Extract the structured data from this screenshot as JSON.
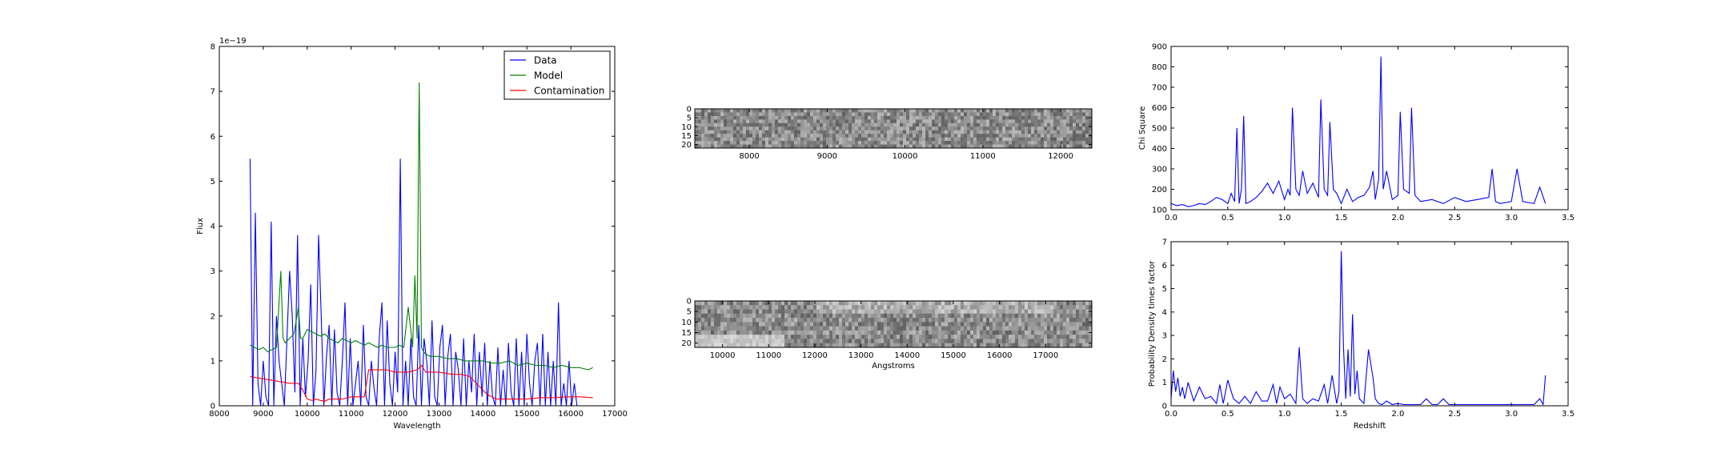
{
  "chart_data": [
    {
      "type": "line",
      "xlabel": "Wavelength",
      "ylabel": "Flux",
      "offset_label": "1e−19",
      "xlim": [
        8000,
        17000
      ],
      "ylim": [
        0,
        8
      ],
      "xticks": [
        "8000",
        "9000",
        "10000",
        "11000",
        "12000",
        "13000",
        "14000",
        "15000",
        "16000",
        "17000"
      ],
      "yticks": [
        "0",
        "1",
        "2",
        "3",
        "4",
        "5",
        "6",
        "7",
        "8"
      ],
      "legend_position": "upper right",
      "colors": {
        "Data": "#0000ff",
        "Model": "#008000",
        "Contamination": "#ff0000"
      },
      "series": [
        {
          "name": "Data",
          "x": [
            8700,
            8760,
            8820,
            8880,
            8940,
            9000,
            9060,
            9120,
            9180,
            9240,
            9300,
            9360,
            9420,
            9480,
            9540,
            9600,
            9660,
            9720,
            9780,
            9840,
            9900,
            9960,
            10020,
            10080,
            10140,
            10200,
            10260,
            10320,
            10380,
            10440,
            10500,
            10560,
            10620,
            10680,
            10740,
            10800,
            10860,
            10920,
            10980,
            11040,
            11100,
            11160,
            11220,
            11280,
            11340,
            11400,
            11460,
            11520,
            11580,
            11640,
            11700,
            11760,
            11820,
            11880,
            11940,
            12000,
            12060,
            12120,
            12180,
            12240,
            12300,
            12360,
            12420,
            12480,
            12540,
            12600,
            12660,
            12720,
            12780,
            12840,
            12900,
            12960,
            13020,
            13080,
            13140,
            13200,
            13260,
            13320,
            13380,
            13440,
            13500,
            13560,
            13620,
            13680,
            13740,
            13800,
            13860,
            13920,
            13980,
            14040,
            14100,
            14160,
            14220,
            14280,
            14340,
            14400,
            14460,
            14520,
            14580,
            14640,
            14700,
            14760,
            14820,
            14880,
            14940,
            15000,
            15060,
            15120,
            15180,
            15240,
            15300,
            15360,
            15420,
            15480,
            15540,
            15600,
            15660,
            15720,
            15780,
            15840,
            15900,
            15960,
            16020,
            16080,
            16140,
            16200,
            16260,
            16320,
            16380,
            16440
          ],
          "values": [
            5.5,
            0.0,
            4.3,
            0.5,
            0.0,
            1.0,
            0.2,
            0.0,
            4.1,
            0.0,
            2.0,
            1.0,
            0.5,
            0.0,
            1.5,
            3.0,
            2.0,
            0.3,
            3.8,
            0.0,
            1.5,
            0.2,
            1.0,
            2.7,
            0.0,
            0.8,
            3.8,
            2.0,
            0.0,
            1.1,
            1.8,
            0.0,
            1.7,
            0.3,
            0.0,
            1.0,
            2.3,
            0.0,
            1.5,
            0.0,
            0.5,
            1.0,
            0.0,
            1.8,
            0.2,
            0.0,
            1.0,
            0.4,
            0.0,
            1.5,
            2.3,
            0.0,
            1.9,
            0.5,
            0.0,
            1.2,
            0.3,
            5.5,
            0.0,
            1.0,
            0.0,
            1.5,
            0.2,
            0.0,
            1.8,
            0.0,
            1.5,
            1.0,
            0.0,
            1.9,
            0.2,
            0.0,
            1.3,
            1.8,
            0.0,
            1.1,
            1.6,
            0.0,
            1.2,
            0.8,
            0.0,
            1.5,
            0.0,
            1.0,
            0.3,
            1.6,
            0.0,
            1.2,
            0.2,
            1.4,
            0.0,
            1.0,
            0.2,
            0.0,
            1.3,
            0.0,
            0.8,
            0.0,
            1.4,
            0.3,
            0.0,
            1.5,
            0.0,
            1.2,
            0.0,
            1.6,
            0.5,
            0.0,
            1.0,
            1.4,
            0.0,
            1.6,
            0.0,
            1.2,
            0.0,
            1.0,
            0.0,
            2.3,
            0.0,
            0.5,
            0.0,
            1.0,
            0.0,
            0.5,
            0.0,
            0.0,
            0.0,
            0.0,
            0.0,
            0.0
          ]
        },
        {
          "name": "Model",
          "x": [
            8700,
            8800,
            8900,
            9000,
            9100,
            9200,
            9300,
            9400,
            9450,
            9500,
            9600,
            9700,
            9800,
            9850,
            9900,
            10000,
            10100,
            10200,
            10300,
            10400,
            10500,
            10600,
            10700,
            10800,
            10900,
            11000,
            11100,
            11200,
            11300,
            11400,
            11500,
            11600,
            11700,
            11800,
            11900,
            12000,
            12100,
            12200,
            12300,
            12400,
            12450,
            12500,
            12550,
            12600,
            12650,
            12700,
            12800,
            12900,
            13000,
            13200,
            13400,
            13600,
            13800,
            14000,
            14200,
            14400,
            14600,
            14800,
            15000,
            15200,
            15400,
            15600,
            15800,
            16000,
            16200,
            16400,
            16500
          ],
          "values": [
            1.35,
            1.3,
            1.25,
            1.3,
            1.2,
            1.25,
            1.3,
            3.0,
            1.5,
            1.4,
            1.5,
            1.6,
            2.2,
            1.5,
            1.5,
            1.7,
            1.65,
            1.6,
            1.55,
            1.6,
            1.5,
            1.45,
            1.4,
            1.5,
            1.45,
            1.4,
            1.45,
            1.4,
            1.35,
            1.4,
            1.35,
            1.3,
            1.35,
            1.3,
            1.3,
            1.3,
            1.35,
            1.3,
            2.2,
            1.3,
            2.9,
            1.5,
            7.2,
            1.3,
            1.2,
            1.15,
            1.1,
            1.1,
            1.1,
            1.05,
            1.05,
            1.0,
            1.0,
            1.0,
            0.95,
            0.95,
            1.0,
            0.9,
            0.95,
            0.9,
            0.9,
            0.85,
            0.9,
            0.85,
            0.85,
            0.8,
            0.85
          ]
        },
        {
          "name": "Contamination",
          "x": [
            8700,
            9000,
            9300,
            9600,
            9800,
            9900,
            10000,
            10100,
            10200,
            10300,
            10400,
            10500,
            10800,
            11000,
            11300,
            11400,
            11500,
            11800,
            12000,
            12300,
            12500,
            12600,
            12700,
            13000,
            13300,
            13500,
            13700,
            13800,
            13900,
            14000,
            14100,
            14200,
            14300,
            14500,
            14800,
            15000,
            15300,
            15600,
            15900,
            16200,
            16500
          ],
          "values": [
            0.65,
            0.6,
            0.55,
            0.5,
            0.5,
            0.35,
            0.15,
            0.12,
            0.15,
            0.12,
            0.1,
            0.15,
            0.15,
            0.2,
            0.2,
            0.8,
            0.8,
            0.8,
            0.75,
            0.75,
            0.8,
            0.9,
            0.75,
            0.75,
            0.7,
            0.7,
            0.65,
            0.55,
            0.45,
            0.35,
            0.25,
            0.2,
            0.15,
            0.15,
            0.15,
            0.15,
            0.18,
            0.18,
            0.2,
            0.2,
            0.18
          ]
        }
      ]
    },
    {
      "type": "heatmap",
      "xticks": [
        "8000",
        "9000",
        "10000",
        "11000",
        "12000"
      ],
      "xtick_values": [
        8000,
        9000,
        10000,
        11000,
        12000
      ],
      "xlim": [
        7300,
        12400
      ],
      "yticks": [
        "0",
        "5",
        "10",
        "15",
        "20"
      ],
      "ylim": [
        0,
        22
      ],
      "colormap": "gray"
    },
    {
      "type": "line",
      "xlabel": "",
      "ylabel": "Chi Square",
      "xlim": [
        0.0,
        3.5
      ],
      "ylim": [
        100,
        900
      ],
      "xticks": [
        "0.0",
        "0.5",
        "1.0",
        "1.5",
        "2.0",
        "2.5",
        "3.0",
        "3.5"
      ],
      "yticks": [
        "100",
        "200",
        "300",
        "400",
        "500",
        "600",
        "700",
        "800",
        "900"
      ],
      "series": [
        {
          "x": [
            0.0,
            0.05,
            0.1,
            0.15,
            0.2,
            0.25,
            0.3,
            0.35,
            0.4,
            0.45,
            0.5,
            0.53,
            0.56,
            0.58,
            0.6,
            0.62,
            0.64,
            0.66,
            0.7,
            0.75,
            0.8,
            0.85,
            0.9,
            0.95,
            1.0,
            1.03,
            1.05,
            1.07,
            1.1,
            1.13,
            1.16,
            1.2,
            1.25,
            1.3,
            1.32,
            1.35,
            1.38,
            1.4,
            1.43,
            1.46,
            1.5,
            1.55,
            1.6,
            1.65,
            1.7,
            1.75,
            1.78,
            1.8,
            1.83,
            1.85,
            1.87,
            1.9,
            1.95,
            2.0,
            2.02,
            2.05,
            2.1,
            2.12,
            2.15,
            2.2,
            2.3,
            2.4,
            2.5,
            2.6,
            2.7,
            2.8,
            2.83,
            2.86,
            2.9,
            3.0,
            3.05,
            3.1,
            3.2,
            3.25,
            3.3
          ],
          "values": [
            130,
            120,
            125,
            115,
            120,
            130,
            125,
            140,
            160,
            150,
            130,
            180,
            140,
            500,
            130,
            200,
            560,
            130,
            140,
            160,
            190,
            230,
            180,
            240,
            150,
            200,
            170,
            600,
            200,
            170,
            290,
            180,
            230,
            160,
            640,
            200,
            170,
            530,
            200,
            180,
            130,
            200,
            140,
            160,
            170,
            210,
            290,
            150,
            250,
            850,
            200,
            290,
            150,
            170,
            580,
            200,
            180,
            600,
            170,
            140,
            150,
            130,
            160,
            140,
            150,
            160,
            300,
            140,
            130,
            140,
            300,
            140,
            130,
            210,
            130
          ]
        }
      ]
    },
    {
      "type": "heatmap",
      "xlabel": "Angstroms",
      "xticks": [
        "10000",
        "11000",
        "12000",
        "13000",
        "14000",
        "15000",
        "16000",
        "17000"
      ],
      "xtick_values": [
        10000,
        11000,
        12000,
        13000,
        14000,
        15000,
        16000,
        17000
      ],
      "xlim": [
        9400,
        18000
      ],
      "yticks": [
        "0",
        "5",
        "10",
        "15",
        "20"
      ],
      "ylim": [
        0,
        22
      ],
      "colormap": "gray"
    },
    {
      "type": "line",
      "xlabel": "Redshift",
      "ylabel": "Probability Density times factor",
      "xlim": [
        0.0,
        3.5
      ],
      "ylim": [
        0,
        7
      ],
      "xticks": [
        "0.0",
        "0.5",
        "1.0",
        "1.5",
        "2.0",
        "2.5",
        "3.0",
        "3.5"
      ],
      "yticks": [
        "0",
        "1",
        "2",
        "3",
        "4",
        "5",
        "6",
        "7"
      ],
      "series": [
        {
          "x": [
            0.0,
            0.02,
            0.04,
            0.06,
            0.08,
            0.1,
            0.12,
            0.15,
            0.2,
            0.25,
            0.3,
            0.35,
            0.4,
            0.43,
            0.46,
            0.5,
            0.55,
            0.6,
            0.65,
            0.7,
            0.75,
            0.8,
            0.85,
            0.9,
            0.93,
            0.96,
            1.0,
            1.05,
            1.1,
            1.13,
            1.16,
            1.2,
            1.25,
            1.3,
            1.35,
            1.38,
            1.42,
            1.46,
            1.48,
            1.5,
            1.52,
            1.54,
            1.56,
            1.58,
            1.6,
            1.62,
            1.64,
            1.66,
            1.68,
            1.7,
            1.74,
            1.78,
            1.8,
            1.83,
            1.86,
            1.9,
            1.95,
            2.0,
            2.05,
            2.1,
            2.2,
            2.25,
            2.3,
            2.35,
            2.4,
            2.45,
            2.5,
            2.6,
            2.7,
            2.8,
            2.9,
            3.0,
            3.1,
            3.2,
            3.25,
            3.28,
            3.3
          ],
          "values": [
            0.3,
            1.5,
            0.6,
            1.2,
            0.4,
            0.8,
            0.3,
            1.0,
            0.2,
            0.8,
            0.3,
            0.4,
            0.1,
            0.9,
            0.1,
            1.1,
            0.3,
            0.1,
            0.4,
            0.1,
            0.6,
            0.2,
            0.2,
            0.9,
            0.1,
            0.8,
            0.3,
            0.5,
            0.1,
            2.5,
            0.3,
            0.1,
            0.3,
            0.2,
            0.9,
            0.1,
            1.3,
            0.1,
            0.6,
            6.6,
            2.5,
            0.3,
            2.4,
            0.4,
            3.9,
            0.5,
            1.5,
            0.3,
            0.2,
            0.1,
            2.4,
            1.2,
            0.3,
            0.1,
            0.05,
            0.2,
            0.05,
            0.1,
            0.05,
            0.05,
            0.05,
            0.3,
            0.05,
            0.05,
            0.3,
            0.05,
            0.05,
            0.05,
            0.05,
            0.05,
            0.05,
            0.05,
            0.05,
            0.05,
            0.3,
            0.05,
            1.3
          ]
        }
      ]
    }
  ]
}
